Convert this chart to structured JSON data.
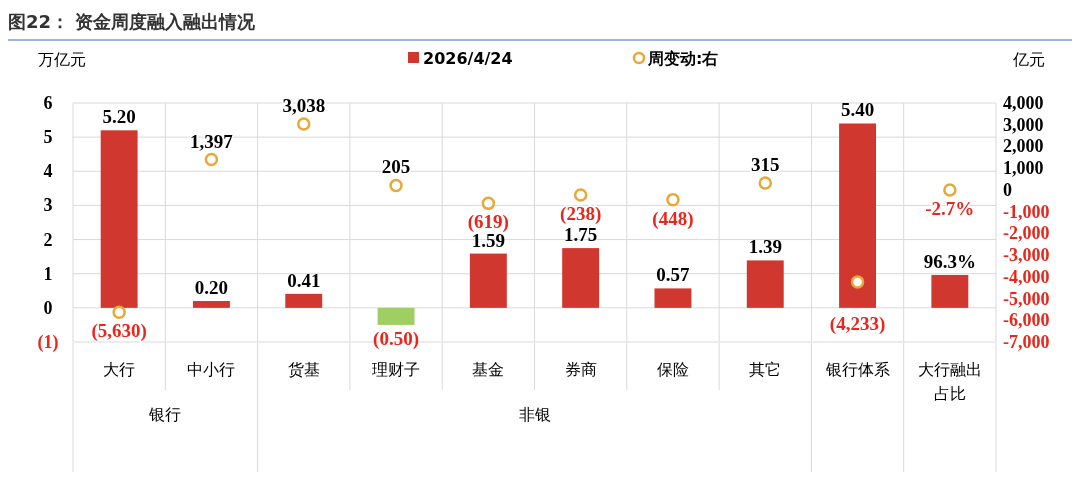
{
  "chart_data": {
    "type": "bar",
    "title": "图22：  资金周度融入融出情况",
    "ylabel": "万亿元",
    "y2label": "亿元",
    "categories": [
      "大行",
      "中小行",
      "货基",
      "理财子",
      "基金",
      "券商",
      "保险",
      "其它",
      "银行体系",
      "大行融出占比"
    ],
    "annotations": [
      "银行",
      "非银"
    ],
    "series": [
      {
        "name": "2026/4/24",
        "type": "bar",
        "color": "#d0372e",
        "colors": [
          "#d0372e",
          "#d0372e",
          "#d0372e",
          "#9fcf63",
          "#d0372e",
          "#d0372e",
          "#d0372e",
          "#d0372e",
          "#d0372e",
          "#d0372e"
        ],
        "values": [
          5.2,
          0.2,
          0.41,
          -0.5,
          1.59,
          1.75,
          0.57,
          1.39,
          5.4,
          0.963
        ],
        "value_labels": [
          "5.20",
          "0.20",
          "0.41",
          "(0.50)",
          "1.59",
          "1.75",
          "0.57",
          "1.39",
          "5.40",
          "96.3%"
        ]
      },
      {
        "name": "周变动:右",
        "type": "scatter",
        "axis": "y2",
        "color": "#e8a838",
        "values": [
          -5630,
          1397,
          3038,
          205,
          -619,
          -238,
          -448,
          315,
          -4233,
          -0.027
        ],
        "value_labels": [
          "(5,630)",
          "1,397",
          "3,038",
          "205",
          "(619)",
          "(238)",
          "(448)",
          "315",
          "(4,233)",
          "-2.7%"
        ]
      }
    ],
    "ylim": [
      -1,
      6
    ],
    "yticks": [
      {
        "value": -1,
        "label": "(1)"
      },
      0,
      1,
      2,
      3,
      4,
      5,
      6
    ],
    "y2lim": [
      -7000,
      4000
    ],
    "y2ticks": [
      {
        "value": -7000,
        "label": "-7,000"
      },
      {
        "value": -6000,
        "label": "-6,000"
      },
      {
        "value": -5000,
        "label": "-5,000"
      },
      {
        "value": -4000,
        "label": "-4,000"
      },
      {
        "value": -3000,
        "label": "-3,000"
      },
      {
        "value": -2000,
        "label": "-2,000"
      },
      {
        "value": -1000,
        "label": "-1,000"
      },
      0,
      {
        "value": 1000,
        "label": "1,000"
      },
      {
        "value": 2000,
        "label": "2,000"
      },
      {
        "value": 3000,
        "label": "3,000"
      },
      {
        "value": 4000,
        "label": "4,000"
      }
    ],
    "grid": true,
    "legend": "top",
    "marker": "circle"
  }
}
